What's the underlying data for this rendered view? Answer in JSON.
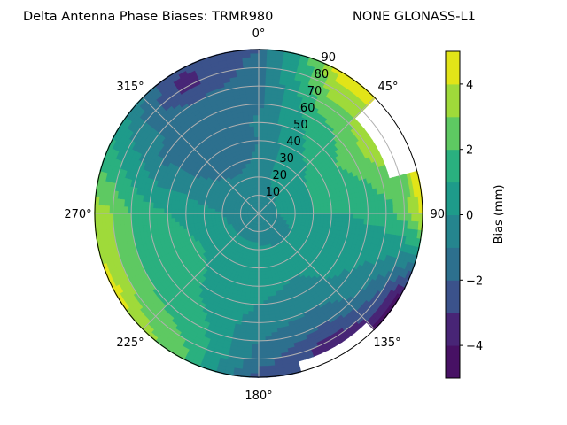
{
  "chart_data": {
    "type": "heatmap",
    "subtype": "polar-filled-contour",
    "title_left": "Delta Antenna Phase Biases: TRMR980",
    "title_right": "NONE GLONASS-L1",
    "angular_ticks": [
      "0°",
      "45°",
      "90°",
      "135°",
      "180°",
      "225°",
      "270°",
      "315°"
    ],
    "radial_ticks": [
      "10",
      "20",
      "30",
      "40",
      "50",
      "60",
      "70",
      "80",
      "90"
    ],
    "radial_range": [
      0,
      90
    ],
    "angular_direction": "clockwise",
    "angular_zero": "top",
    "grid": true,
    "colorbar": {
      "label": "Bias (mm)",
      "range": [
        -5,
        5
      ],
      "levels": [
        -5,
        -4,
        -3,
        -2,
        -1,
        0,
        1,
        2,
        3,
        4,
        5
      ],
      "ticks": [
        "4",
        "2",
        "0",
        "−2",
        "−4"
      ],
      "tick_values": [
        4,
        2,
        0,
        -2,
        -4
      ],
      "colormap": "viridis",
      "colors": [
        "#471164",
        "#482576",
        "#3b528b",
        "#2d708e",
        "#25858e",
        "#1e9b8a",
        "#2ab07f",
        "#5ec962",
        "#9fda3a",
        "#e2e418"
      ],
      "position": "right"
    },
    "azimuths": [
      0,
      30,
      60,
      90,
      120,
      150,
      180,
      210,
      240,
      270,
      300,
      330
    ],
    "zeniths": [
      0,
      10,
      20,
      30,
      40,
      50,
      60,
      70,
      80,
      90
    ],
    "values": [
      [
        -0.5,
        -0.5,
        -0.5,
        -0.8,
        -1.0,
        -0.8,
        -1.2,
        -1.5,
        -1.5,
        -2.0
      ],
      [
        -0.3,
        -0.3,
        0.3,
        0.5,
        0.8,
        1.0,
        1.5,
        2.5,
        3.5,
        4.5
      ],
      [
        -0.3,
        0.0,
        0.5,
        1.0,
        1.5,
        2.0,
        2.5,
        3.5,
        null,
        null
      ],
      [
        -0.3,
        0.0,
        0.5,
        1.0,
        1.0,
        1.0,
        1.2,
        1.5,
        2.5,
        4.5
      ],
      [
        -0.3,
        -0.5,
        0.0,
        0.3,
        0.5,
        0.5,
        0.0,
        -0.5,
        -2.0,
        -4.5
      ],
      [
        -0.3,
        -0.5,
        0.0,
        0.3,
        0.0,
        -0.5,
        -1.0,
        -2.0,
        -3.5,
        null
      ],
      [
        -0.3,
        -0.5,
        0.2,
        0.5,
        0.3,
        0.0,
        -0.5,
        -1.0,
        -1.5,
        -2.5
      ],
      [
        -0.3,
        -0.5,
        0.5,
        0.5,
        0.8,
        0.8,
        1.0,
        1.5,
        2.0,
        2.5
      ],
      [
        -0.3,
        -0.5,
        0.3,
        0.8,
        1.2,
        1.5,
        1.5,
        2.0,
        3.0,
        4.5
      ],
      [
        -0.3,
        -0.5,
        0.0,
        0.3,
        0.8,
        1.0,
        1.5,
        2.0,
        3.0,
        3.5
      ],
      [
        -0.3,
        -0.5,
        -0.5,
        -0.8,
        -1.0,
        -1.0,
        -1.2,
        -0.5,
        0.0,
        0.8
      ],
      [
        -0.3,
        -0.5,
        -0.8,
        -1.5,
        -2.0,
        -2.0,
        -1.5,
        -2.0,
        -3.5,
        -3.0
      ]
    ]
  }
}
